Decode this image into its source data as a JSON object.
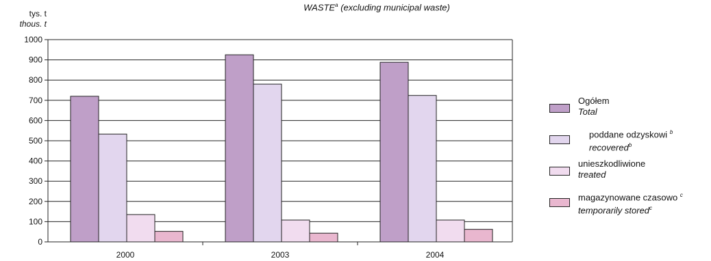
{
  "colors": {
    "total": "#bf9fc8",
    "recovered": "#e2d6ee",
    "treated": "#f1dcef",
    "stored": "#e9b7cf"
  },
  "chart_data": {
    "type": "bar",
    "title": "WASTE",
    "title_sup": "a",
    "title_rest": "(excluding municipal waste)",
    "unit_pl": "tys. t",
    "unit_en": "thous. t",
    "categories": [
      "2000",
      "2003",
      "2004"
    ],
    "ylim": [
      0,
      1000
    ],
    "yticks": [
      0,
      100,
      200,
      300,
      400,
      500,
      600,
      700,
      800,
      900,
      1000
    ],
    "grid": true,
    "legend_position": "right",
    "series": [
      {
        "key": "total",
        "name_pl": "Ogółem",
        "name_pl_sup": "",
        "name_en": "Total",
        "name_en_sup": "",
        "values": [
          720,
          925,
          888
        ]
      },
      {
        "key": "recovered",
        "name_pl": "poddane odzyskowi",
        "name_pl_sup": "b",
        "name_en": "recovered",
        "name_en_sup": "b",
        "values": [
          533,
          780,
          724
        ]
      },
      {
        "key": "treated",
        "name_pl": "unieszkodliwione",
        "name_pl_sup": "",
        "name_en": "treated",
        "name_en_sup": "",
        "values": [
          135,
          108,
          108
        ]
      },
      {
        "key": "stored",
        "name_pl": "magazynowane czasowo",
        "name_pl_sup": "c",
        "name_en": "temporarily stored",
        "name_en_sup": "c",
        "values": [
          52,
          43,
          62
        ]
      }
    ]
  }
}
